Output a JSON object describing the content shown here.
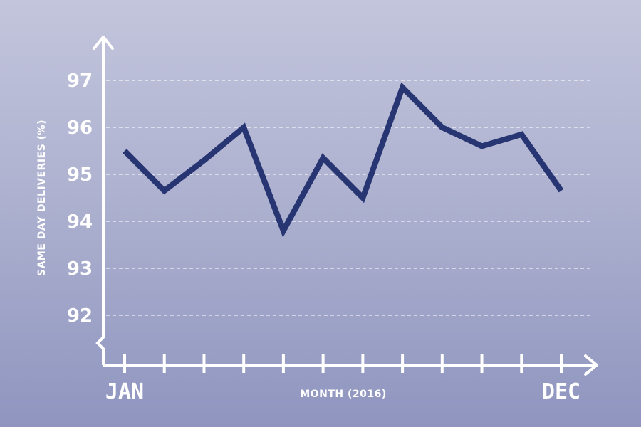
{
  "chart_data": {
    "type": "line",
    "xlabel": "MONTH (2016)",
    "ylabel": "SAME DAY DELIVERIES (%)",
    "x_start_label": "JAN",
    "x_end_label": "DEC",
    "x": [
      1,
      2,
      3,
      4,
      5,
      6,
      7,
      8,
      9,
      10,
      11,
      12
    ],
    "y_ticks": [
      92,
      93,
      94,
      95,
      96,
      97
    ],
    "ylim": [
      92,
      97
    ],
    "grid": true,
    "series": [
      {
        "values": [
          95.5,
          94.65,
          95.3,
          96.0,
          93.8,
          95.35,
          94.5,
          96.85,
          96.0,
          95.6,
          95.85,
          94.65
        ],
        "color": "#273673"
      }
    ],
    "colors": {
      "axis": "#ffffff",
      "grid": "#ffffff",
      "line": "#273673"
    }
  }
}
